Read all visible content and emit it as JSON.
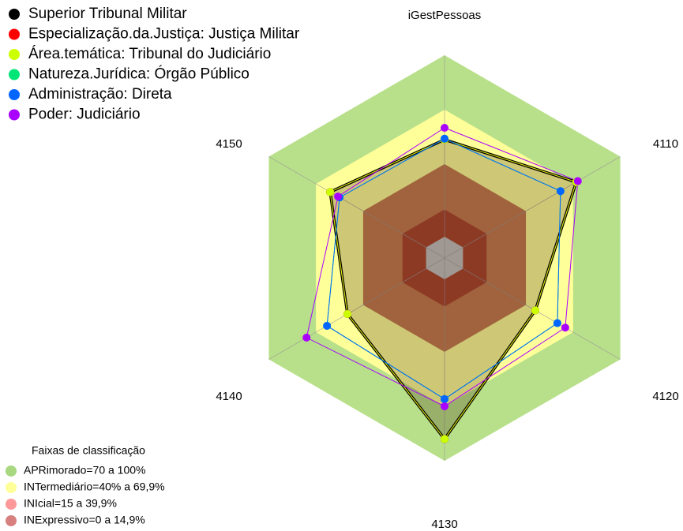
{
  "chart_data": {
    "type": "radar",
    "title": "iGestPessoas",
    "categories": [
      "iGestPessoas",
      "4110",
      "4120",
      "4130",
      "4140",
      "4150"
    ],
    "ylim": [
      0,
      100
    ],
    "series": [
      {
        "name": "Superior Tribunal Militar",
        "color": "#000000",
        "values": [
          53.5,
          72,
          46,
          88,
          50,
          61
        ]
      },
      {
        "name": "Especialização.da.Justiça: Justiça Militar",
        "color": "#ff0000",
        "values": [
          53.5,
          72,
          46,
          88,
          50,
          61
        ]
      },
      {
        "name": "Área.temática: Tribunal do Judiciário",
        "color": "#ccff00",
        "values": [
          53.5,
          72,
          46,
          88,
          50,
          61
        ]
      },
      {
        "name": "Natureza.Jurídica: Órgão Público",
        "color": "#00e676",
        "values": [
          54,
          62,
          60,
          66,
          63,
          55
        ]
      },
      {
        "name": "Administração: Direta",
        "color": "#0066ff",
        "values": [
          54,
          62,
          60,
          66,
          63,
          55
        ]
      },
      {
        "name": "Poder: Judiciário",
        "color": "#aa00ff",
        "values": [
          60,
          73,
          65,
          70,
          76,
          56
        ]
      }
    ],
    "bands_title": "Faixas de classificação",
    "bands": [
      {
        "label": "APRimorado=70 a 100%",
        "min": 70,
        "max": 100,
        "fill": "#b8e08a",
        "legend_color": "#a8d880"
      },
      {
        "label": "INTermediário=40% a 69,9%",
        "min": 40,
        "max": 70,
        "fill": "#ffff99",
        "legend_color": "#ffff99"
      },
      {
        "label": "INIcial=15 a 39,9%",
        "min": 15,
        "max": 40,
        "fill": "#c27a4e",
        "legend_color": "#ff9999"
      },
      {
        "label": "INExpressivo=0 a 14,9%",
        "min": 0,
        "max": 15,
        "fill": "#a8432e",
        "legend_color": "#d88080"
      }
    ]
  }
}
